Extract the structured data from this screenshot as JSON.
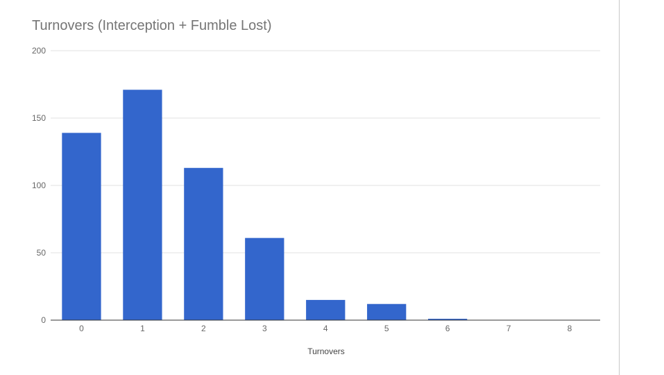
{
  "chart_data": {
    "type": "bar",
    "title": "Turnovers (Interception + Fumble Lost)",
    "xlabel": "Turnovers",
    "ylabel": "",
    "categories": [
      "0",
      "1",
      "2",
      "3",
      "4",
      "5",
      "6",
      "7",
      "8"
    ],
    "values": [
      139,
      171,
      113,
      61,
      15,
      12,
      1,
      0,
      0
    ],
    "ylim": [
      0,
      200
    ],
    "yticks": [
      0,
      50,
      100,
      150,
      200
    ],
    "grid": true,
    "legend": "none",
    "colors": {
      "bar": "#3366cc",
      "grid": "#e0e0e0",
      "axis": "#333333",
      "tick_label": "#666666"
    }
  }
}
